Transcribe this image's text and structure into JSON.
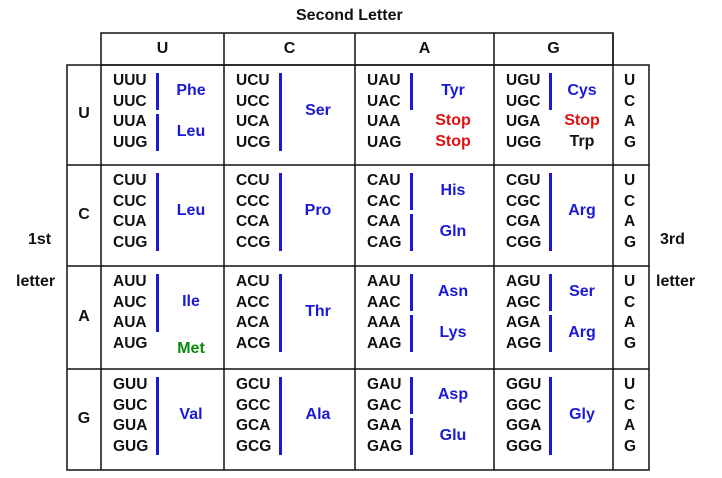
{
  "title_second": "Second Letter",
  "label_first_a": "1st",
  "label_first_b": "letter",
  "label_third_a": "3rd",
  "label_third_b": "letter",
  "colors": {
    "aa": "#1a1ad6",
    "stop": "#e01010",
    "met": "#0a8a0a",
    "trp": "#111111",
    "bar": "#1a1ad6"
  },
  "second_letters": [
    "U",
    "C",
    "A",
    "G"
  ],
  "first_letters": [
    "U",
    "C",
    "A",
    "G"
  ],
  "third_letters": [
    "U",
    "C",
    "A",
    "G"
  ],
  "blocks": [
    [
      {
        "codons": [
          "UUU",
          "UUC",
          "UUA",
          "UUG"
        ],
        "groups": [
          {
            "label": "Phe",
            "start": 0,
            "len": 2,
            "color": "aa"
          },
          {
            "label": "Leu",
            "start": 2,
            "len": 2,
            "color": "aa"
          }
        ]
      },
      {
        "codons": [
          "UCU",
          "UCC",
          "UCA",
          "UCG"
        ],
        "groups": [
          {
            "label": "Ser",
            "start": 0,
            "len": 4,
            "color": "aa"
          }
        ]
      },
      {
        "codons": [
          "UAU",
          "UAC",
          "UAA",
          "UAG"
        ],
        "groups": [
          {
            "label": "Tyr",
            "start": 0,
            "len": 2,
            "color": "aa"
          },
          {
            "label": "Stop",
            "start": 2,
            "len": 1,
            "color": "stop",
            "nobar": true
          },
          {
            "label": "Stop",
            "start": 3,
            "len": 1,
            "color": "stop",
            "nobar": true
          }
        ]
      },
      {
        "codons": [
          "UGU",
          "UGC",
          "UGA",
          "UGG"
        ],
        "groups": [
          {
            "label": "Cys",
            "start": 0,
            "len": 2,
            "color": "aa"
          },
          {
            "label": "Stop",
            "start": 2,
            "len": 1,
            "color": "stop",
            "nobar": true
          },
          {
            "label": "Trp",
            "start": 3,
            "len": 1,
            "color": "trp",
            "nobar": true
          }
        ]
      }
    ],
    [
      {
        "codons": [
          "CUU",
          "CUC",
          "CUA",
          "CUG"
        ],
        "groups": [
          {
            "label": "Leu",
            "start": 0,
            "len": 4,
            "color": "aa"
          }
        ]
      },
      {
        "codons": [
          "CCU",
          "CCC",
          "CCA",
          "CCG"
        ],
        "groups": [
          {
            "label": "Pro",
            "start": 0,
            "len": 4,
            "color": "aa"
          }
        ]
      },
      {
        "codons": [
          "CAU",
          "CAC",
          "CAA",
          "CAG"
        ],
        "groups": [
          {
            "label": "His",
            "start": 0,
            "len": 2,
            "color": "aa"
          },
          {
            "label": "Gln",
            "start": 2,
            "len": 2,
            "color": "aa"
          }
        ]
      },
      {
        "codons": [
          "CGU",
          "CGC",
          "CGA",
          "CGG"
        ],
        "groups": [
          {
            "label": "Arg",
            "start": 0,
            "len": 4,
            "color": "aa"
          }
        ]
      }
    ],
    [
      {
        "codons": [
          "AUU",
          "AUC",
          "AUA",
          "AUG"
        ],
        "groups": [
          {
            "label": "Ile",
            "start": 0,
            "len": 3,
            "color": "aa"
          },
          {
            "label": "Met",
            "start": 3,
            "len": 1,
            "color": "met",
            "nobar": true
          }
        ]
      },
      {
        "codons": [
          "ACU",
          "ACC",
          "ACA",
          "ACG"
        ],
        "groups": [
          {
            "label": "Thr",
            "start": 0,
            "len": 4,
            "color": "aa"
          }
        ]
      },
      {
        "codons": [
          "AAU",
          "AAC",
          "AAA",
          "AAG"
        ],
        "groups": [
          {
            "label": "Asn",
            "start": 0,
            "len": 2,
            "color": "aa"
          },
          {
            "label": "Lys",
            "start": 2,
            "len": 2,
            "color": "aa"
          }
        ]
      },
      {
        "codons": [
          "AGU",
          "AGC",
          "AGA",
          "AGG"
        ],
        "groups": [
          {
            "label": "Ser",
            "start": 0,
            "len": 2,
            "color": "aa"
          },
          {
            "label": "Arg",
            "start": 2,
            "len": 2,
            "color": "aa"
          }
        ]
      }
    ],
    [
      {
        "codons": [
          "GUU",
          "GUC",
          "GUA",
          "GUG"
        ],
        "groups": [
          {
            "label": "Val",
            "start": 0,
            "len": 4,
            "color": "aa"
          }
        ]
      },
      {
        "codons": [
          "GCU",
          "GCC",
          "GCA",
          "GCG"
        ],
        "groups": [
          {
            "label": "Ala",
            "start": 0,
            "len": 4,
            "color": "aa"
          }
        ]
      },
      {
        "codons": [
          "GAU",
          "GAC",
          "GAA",
          "GAG"
        ],
        "groups": [
          {
            "label": "Asp",
            "start": 0,
            "len": 2,
            "color": "aa"
          },
          {
            "label": "Glu",
            "start": 2,
            "len": 2,
            "color": "aa"
          }
        ]
      },
      {
        "codons": [
          "GGU",
          "GGC",
          "GGA",
          "GGG"
        ],
        "groups": [
          {
            "label": "Gly",
            "start": 0,
            "len": 4,
            "color": "aa"
          }
        ]
      }
    ]
  ]
}
